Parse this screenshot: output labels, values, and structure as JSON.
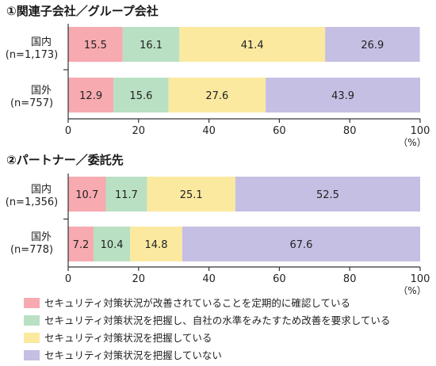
{
  "colors": {
    "red": "#f7aab0",
    "green": "#b9e0c3",
    "yellow": "#fbe9a0",
    "purple": "#c5bfe3",
    "axis": "#333333"
  },
  "legend": [
    {
      "color_key": "red",
      "label": "セキュリティ対策状況が改善されていることを定期的に確認している"
    },
    {
      "color_key": "green",
      "label": "セキュリティ対策状況を把握し、自社の水準をみたすため改善を要求している"
    },
    {
      "color_key": "yellow",
      "label": "セキュリティ対策状況を把握している"
    },
    {
      "color_key": "purple",
      "label": "セキュリティ対策状況を把握していない"
    }
  ],
  "chart_data": [
    {
      "type": "bar",
      "stacked": true,
      "orientation": "horizontal",
      "title": "①関連子会社／グループ会社",
      "categories": [
        {
          "line1": "国内",
          "line2": "(n=1,173)"
        },
        {
          "line1": "国外",
          "line2": "(n=757)"
        }
      ],
      "series": [
        {
          "color_key": "red",
          "values": [
            15.5,
            12.9
          ]
        },
        {
          "color_key": "green",
          "values": [
            16.1,
            15.6
          ]
        },
        {
          "color_key": "yellow",
          "values": [
            41.4,
            27.6
          ]
        },
        {
          "color_key": "purple",
          "values": [
            26.9,
            43.9
          ]
        }
      ],
      "xlim": [
        0,
        100
      ],
      "ticks": [
        "0",
        "20",
        "40",
        "60",
        "80",
        "100"
      ],
      "unit": "（%）"
    },
    {
      "type": "bar",
      "stacked": true,
      "orientation": "horizontal",
      "title": "②パートナー／委託先",
      "categories": [
        {
          "line1": "国内",
          "line2": "(n=1,356)"
        },
        {
          "line1": "国外",
          "line2": "(n=778)"
        }
      ],
      "series": [
        {
          "color_key": "red",
          "values": [
            10.7,
            7.2
          ]
        },
        {
          "color_key": "green",
          "values": [
            11.7,
            10.4
          ]
        },
        {
          "color_key": "yellow",
          "values": [
            25.1,
            14.8
          ]
        },
        {
          "color_key": "purple",
          "values": [
            52.5,
            67.6
          ]
        }
      ],
      "xlim": [
        0,
        100
      ],
      "ticks": [
        "0",
        "20",
        "40",
        "60",
        "80",
        "100"
      ],
      "unit": "（%）"
    }
  ]
}
